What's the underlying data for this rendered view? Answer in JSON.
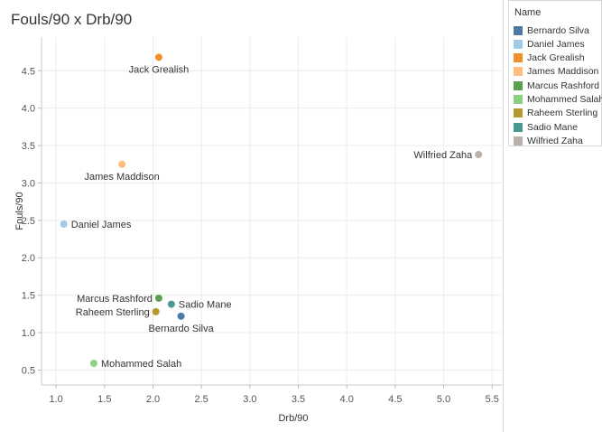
{
  "chart_data": {
    "type": "scatter",
    "title": "Fouls/90 x Drb/90",
    "xlabel": "Drb/90",
    "ylabel": "Fouls/90",
    "xlim": [
      0.85,
      5.6
    ],
    "ylim": [
      0.3,
      4.95
    ],
    "xticks": [
      "1.0",
      "1.5",
      "2.0",
      "2.5",
      "3.0",
      "3.5",
      "4.0",
      "4.5",
      "5.0",
      "5.5"
    ],
    "yticks": [
      "0.5",
      "1.0",
      "1.5",
      "2.0",
      "2.5",
      "3.0",
      "3.5",
      "4.0",
      "4.5"
    ],
    "grid": true,
    "legend_position": "right",
    "legend_title": "Name",
    "series": [
      {
        "name": "Bernardo Silva",
        "color": "#4e79a7",
        "x": 2.29,
        "y": 1.22,
        "label_pos": "below"
      },
      {
        "name": "Daniel James",
        "color": "#a0cbe8",
        "x": 1.08,
        "y": 2.45,
        "label_pos": "right"
      },
      {
        "name": "Jack Grealish",
        "color": "#f28e2b",
        "x": 2.06,
        "y": 4.68,
        "label_pos": "below"
      },
      {
        "name": "James Maddison",
        "color": "#ffbe7d",
        "x": 1.68,
        "y": 3.25,
        "label_pos": "below"
      },
      {
        "name": "Marcus Rashford",
        "color": "#59a14f",
        "x": 2.06,
        "y": 1.46,
        "label_pos": "left"
      },
      {
        "name": "Mohammed Salah",
        "color": "#8cd17d",
        "x": 1.39,
        "y": 0.59,
        "label_pos": "right"
      },
      {
        "name": "Raheem Sterling",
        "color": "#b6992d",
        "x": 2.03,
        "y": 1.28,
        "label_pos": "left"
      },
      {
        "name": "Sadio Mane",
        "color": "#499894",
        "x": 2.19,
        "y": 1.38,
        "label_pos": "right"
      },
      {
        "name": "Wilfried Zaha",
        "color": "#bab0ac",
        "x": 5.36,
        "y": 3.38,
        "label_pos": "left"
      }
    ]
  }
}
